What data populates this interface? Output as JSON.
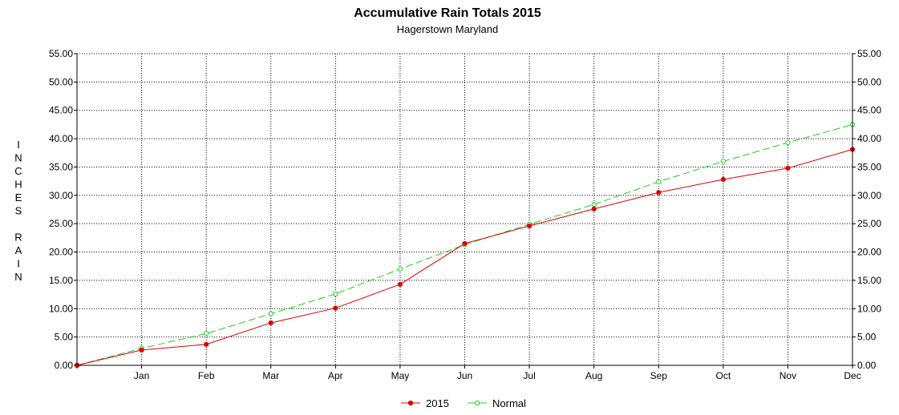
{
  "chart_data": {
    "type": "line",
    "title": "Accumulative Rain Totals 2015",
    "subtitle": "Hagerstown Maryland",
    "ylabel": "INCHES RAIN",
    "xlabel": "",
    "categories": [
      "",
      "Jan",
      "Feb",
      "Mar",
      "Apr",
      "May",
      "Jun",
      "Jul",
      "Aug",
      "Sep",
      "Oct",
      "Nov",
      "Dec"
    ],
    "ylim": [
      0,
      55
    ],
    "yticks": [
      "0.00",
      "5.00",
      "10.00",
      "15.00",
      "20.00",
      "25.00",
      "30.00",
      "35.00",
      "40.00",
      "45.00",
      "50.00",
      "55.00"
    ],
    "grid": true,
    "legend_position": "bottom",
    "series": [
      {
        "name": "2015",
        "color": "#dd0000",
        "line_style": "solid",
        "values": [
          0,
          2.7,
          3.7,
          7.5,
          10.1,
          14.3,
          21.5,
          24.6,
          27.6,
          30.5,
          32.8,
          34.8,
          38.1
        ]
      },
      {
        "name": "Normal",
        "color": "#22cc22",
        "line_style": "dashed",
        "values": [
          0,
          3.0,
          5.6,
          9.1,
          12.6,
          17.0,
          21.3,
          24.9,
          28.4,
          32.4,
          36.0,
          39.3,
          42.5
        ]
      }
    ]
  }
}
